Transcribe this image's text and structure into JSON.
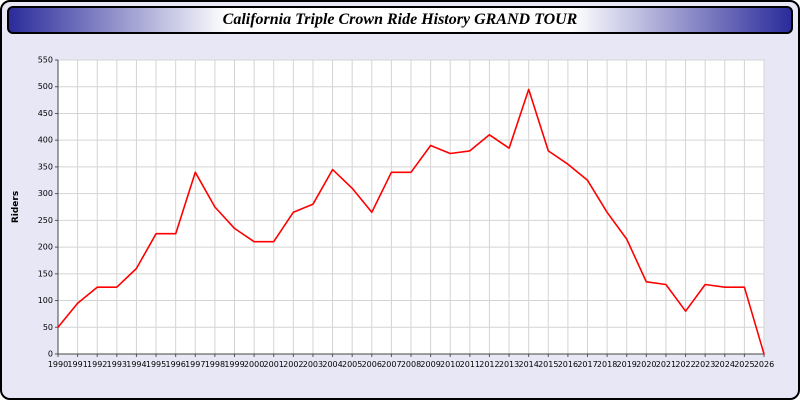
{
  "header": {
    "title": "California Triple Crown Ride History GRAND TOUR"
  },
  "chart_data": {
    "type": "line",
    "title": "California Triple Crown Ride History GRAND TOUR",
    "xlabel": "",
    "ylabel": "Riders",
    "ylim": [
      0,
      550
    ],
    "ytick_step": 50,
    "grid": true,
    "legend_position": "none",
    "line_color": "#ff0000",
    "x": [
      1990,
      1991,
      1992,
      1993,
      1994,
      1995,
      1996,
      1997,
      1998,
      1999,
      2000,
      2001,
      2002,
      2003,
      2004,
      2005,
      2006,
      2007,
      2008,
      2009,
      2010,
      2011,
      2012,
      2013,
      2014,
      2015,
      2016,
      2017,
      2018,
      2019,
      2020,
      2021,
      2022,
      2023,
      2024,
      2025,
      2026
    ],
    "values": [
      50,
      95,
      125,
      125,
      160,
      225,
      225,
      340,
      275,
      235,
      210,
      210,
      265,
      280,
      345,
      310,
      265,
      340,
      340,
      390,
      375,
      380,
      410,
      385,
      495,
      380,
      355,
      325,
      265,
      215,
      135,
      130,
      80,
      130,
      125,
      125,
      0
    ]
  }
}
